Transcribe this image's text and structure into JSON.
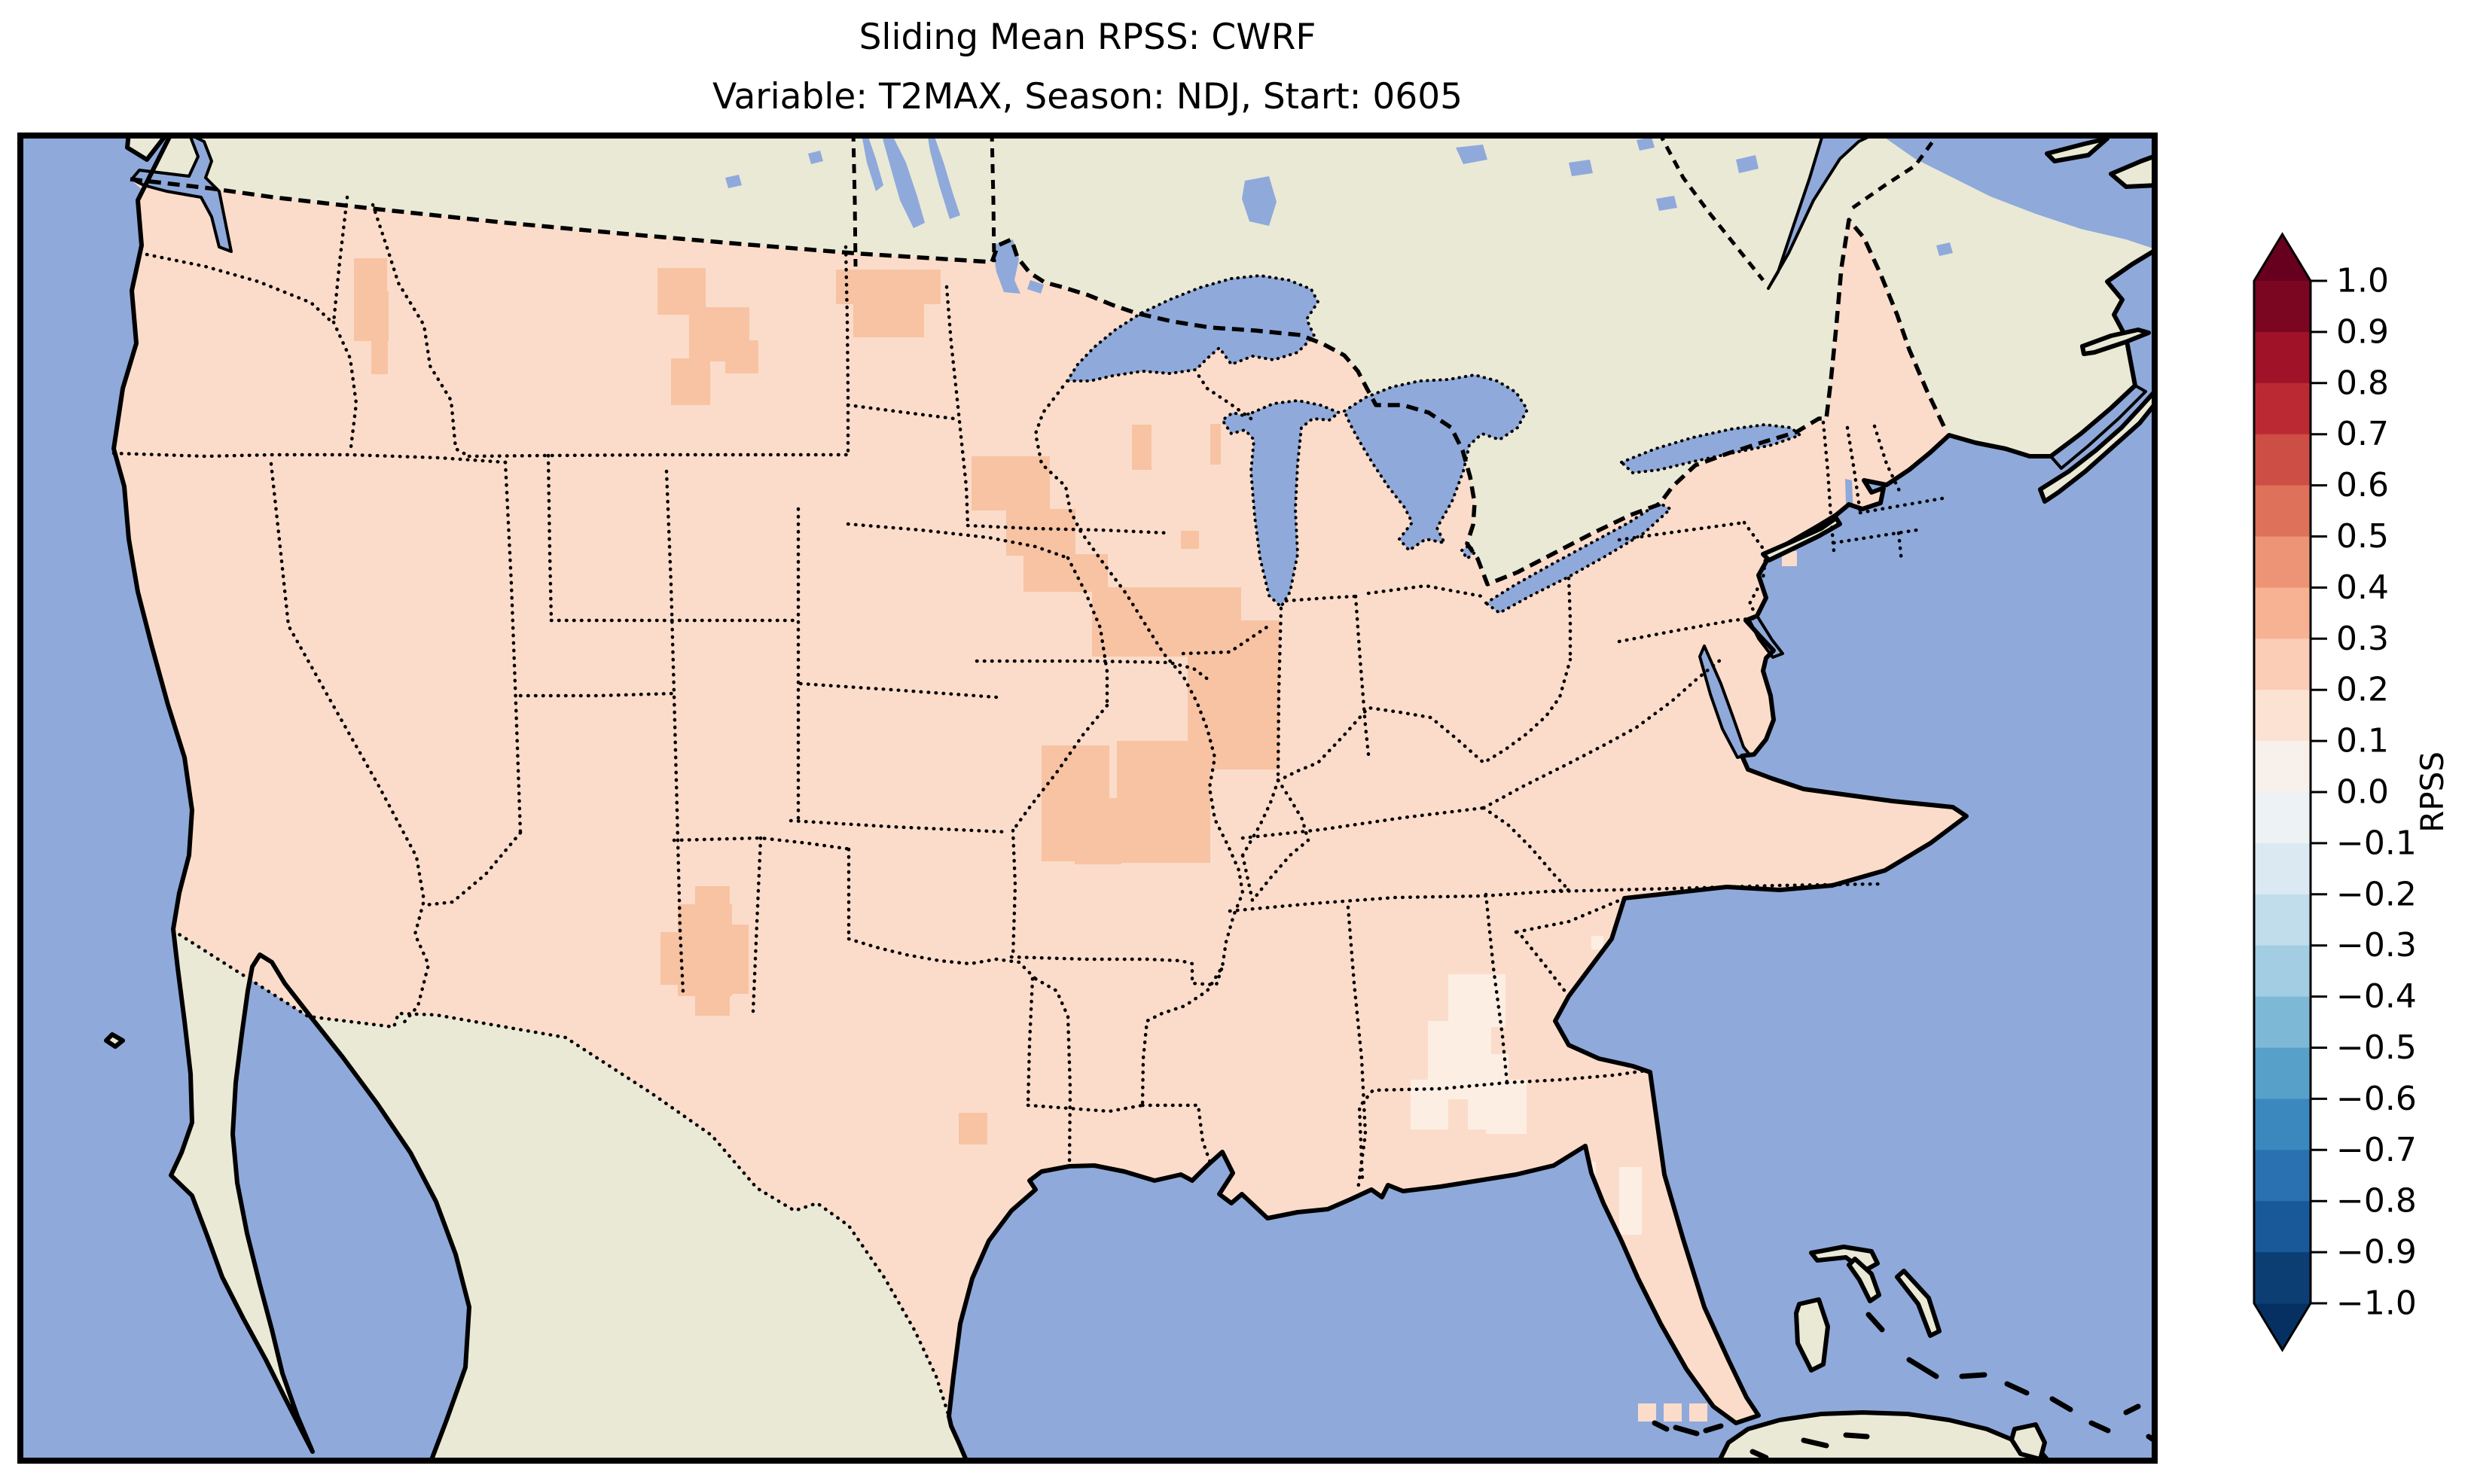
{
  "title": {
    "line1": "Sliding Mean RPSS: CWRF",
    "line2": "Variable: T2MAX, Season: NDJ, Start: 0605"
  },
  "chart_data": {
    "type": "heatmap",
    "title": "Sliding Mean RPSS: CWRF",
    "subtitle": "Variable: T2MAX, Season: NDJ, Start: 0605",
    "model": "CWRF",
    "variable": "T2MAX",
    "season": "NDJ",
    "start": "0605",
    "legend_position": "right",
    "colorbar": {
      "label": "RPSS",
      "orientation": "vertical",
      "extend": "both",
      "range": [
        -1.0,
        1.0
      ],
      "tick_labels_top_to_bottom": [
        "1.0",
        "0.9",
        "0.8",
        "0.7",
        "0.6",
        "0.5",
        "0.4",
        "0.3",
        "0.2",
        "0.1",
        "0.0",
        "−0.1",
        "−0.2",
        "−0.3",
        "−0.4",
        "−0.5",
        "−0.6",
        "−0.7",
        "−0.8",
        "−0.9",
        "−1.0"
      ],
      "bin_colors_top_to_bottom": [
        "#7a0622",
        "#9f1228",
        "#bb2a33",
        "#cd4e44",
        "#dd715a",
        "#ec9475",
        "#f6b293",
        "#fbcdb6",
        "#fce2d3",
        "#f8f0eb",
        "#edf2f5",
        "#dbe9f2",
        "#c1ddec",
        "#a2cde3",
        "#7eb8d7",
        "#57a0ca",
        "#3a88bd",
        "#2a71b2",
        "#1a5999",
        "#0c3e74"
      ],
      "over_color": "#67001f",
      "under_color": "#053061"
    },
    "map": {
      "extent_note": "Contiguous United States with southern Canada, Mexico, Gulf of Mexico, Cuba and the Bahamas",
      "ocean_color": "#8fa9da",
      "land_color": "#e9e9d6",
      "grid_note": "RPSS plotted as coarse raster cells over CONUS only",
      "value_summary": [
        {
          "rpss_bin": "0.1 to 0.2",
          "color": "#fbdcca",
          "region": "most of the contiguous United States"
        },
        {
          "rpss_bin": "0.2 to 0.3",
          "color": "#f7c3a3",
          "region": "patches over E Washington, W Montana, NW North Dakota, S Minnesota, Iowa, N Missouri, SW Wisconsin, C New Mexico, SW Texas"
        },
        {
          "rpss_bin": "0.0 to 0.1",
          "color": "#fdeee3",
          "region": "patches over C Georgia, SE Alabama, N and C Florida, coastal South Carolina"
        }
      ],
      "patch_colors": {
        "orange": "#f7c3a3",
        "white": "#fdeee3",
        "pink": "#fbdcca"
      },
      "patches": {
        "orange": [
          [
            284,
            14,
            30,
            52
          ],
          [
            192,
            51,
            16,
            16
          ],
          [
            447,
            167,
            44,
            44
          ],
          [
            447,
            211,
            46,
            66
          ],
          [
            470,
            277,
            22,
            44
          ],
          [
            850,
            180,
            64,
            62
          ],
          [
            892,
            232,
            80,
            72
          ],
          [
            868,
            300,
            52,
            62
          ],
          [
            940,
            276,
            44,
            44
          ],
          [
            1087,
            182,
            139,
            46
          ],
          [
            1110,
            228,
            94,
            44
          ],
          [
            1267,
            430,
            104,
            72
          ],
          [
            1313,
            500,
            92,
            62
          ],
          [
            1336,
            560,
            112,
            50
          ],
          [
            1427,
            604,
            198,
            92
          ],
          [
            1554,
            648,
            122,
            198
          ],
          [
            1460,
            808,
            124,
            162
          ],
          [
            1360,
            814,
            90,
            154
          ],
          [
            1404,
            884,
            62,
            88
          ],
          [
            1480,
            388,
            26,
            60
          ],
          [
            1545,
            529,
            24,
            24
          ],
          [
            1584,
            387,
            14,
            54
          ],
          [
            877,
            1025,
            72,
            122
          ],
          [
            854,
            1062,
            48,
            70
          ],
          [
            923,
            1052,
            48,
            92
          ],
          [
            900,
            1001,
            46,
            46
          ],
          [
            900,
            1147,
            46,
            26
          ],
          [
            1250,
            1302,
            38,
            42
          ]
        ],
        "white": [
          [
            1900,
            1118,
            76,
            70
          ],
          [
            1873,
            1180,
            84,
            104
          ],
          [
            1850,
            1258,
            50,
            66
          ],
          [
            1926,
            1224,
            54,
            100
          ],
          [
            1950,
            1258,
            54,
            72
          ],
          [
            2127,
            1374,
            30,
            90
          ],
          [
            2044,
            1367,
            52,
            108
          ],
          [
            2066,
            1464,
            48,
            80
          ],
          [
            2090,
            1067,
            16,
            18
          ]
        ],
        "pink_offshore": [
          [
            2152,
            1688,
            24,
            24
          ],
          [
            2186,
            1688,
            24,
            24
          ],
          [
            2220,
            1688,
            24,
            24
          ],
          [
            2474,
            438,
            20,
            20
          ],
          [
            2343,
            556,
            20,
            20
          ],
          [
            1610,
            1352,
            22,
            22
          ],
          [
            1640,
            1385,
            22,
            22
          ]
        ]
      }
    }
  }
}
